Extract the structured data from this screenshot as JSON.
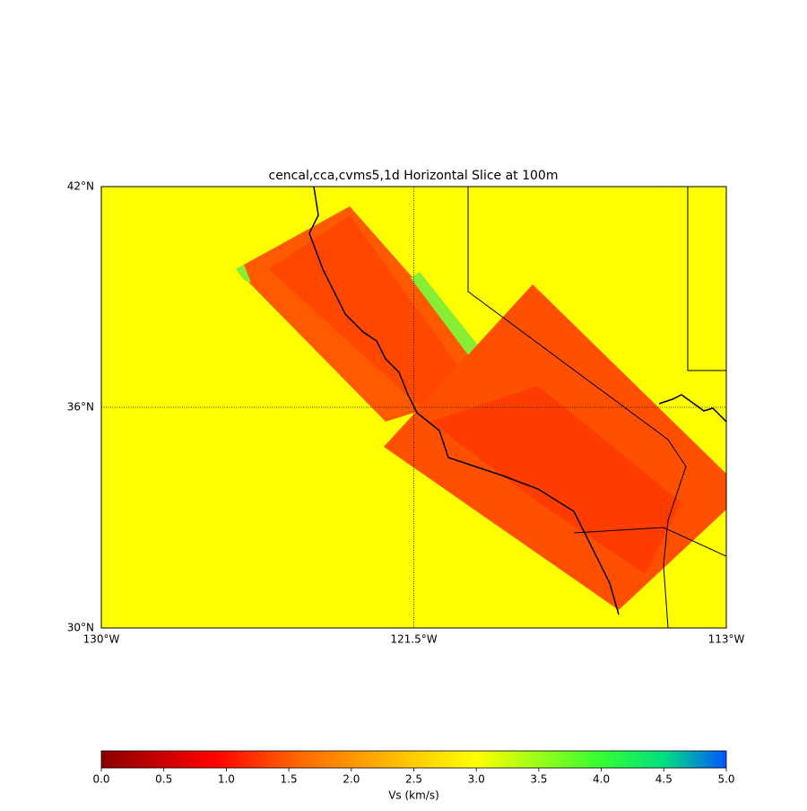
{
  "chart_data": {
    "type": "map",
    "title": "cencal,cca,cvms5,1d Horizontal Slice at 100m",
    "xlim": [
      -130,
      -113
    ],
    "ylim": [
      30,
      42
    ],
    "xticks": [
      {
        "value": -130,
        "label": "130°W"
      },
      {
        "value": -121.5,
        "label": "121.5°W"
      },
      {
        "value": -113,
        "label": "113°W"
      }
    ],
    "yticks": [
      {
        "value": 30,
        "label": "30°N"
      },
      {
        "value": 36,
        "label": "36°N"
      },
      {
        "value": 42,
        "label": "42°N"
      }
    ],
    "grid": true,
    "colorbar": {
      "label": "Vs (km/s)",
      "lim": [
        0,
        5
      ],
      "ticks": [
        {
          "value": 0,
          "label": "0.0"
        },
        {
          "value": 0.5,
          "label": "0.5"
        },
        {
          "value": 1,
          "label": "1.0"
        },
        {
          "value": 1.5,
          "label": "1.5"
        },
        {
          "value": 2,
          "label": "2.0"
        },
        {
          "value": 2.5,
          "label": "2.5"
        },
        {
          "value": 3,
          "label": "3.0"
        },
        {
          "value": 3.5,
          "label": "3.5"
        },
        {
          "value": 4,
          "label": "4.0"
        },
        {
          "value": 4.5,
          "label": "4.5"
        },
        {
          "value": 5,
          "label": "5.0"
        }
      ]
    }
  }
}
